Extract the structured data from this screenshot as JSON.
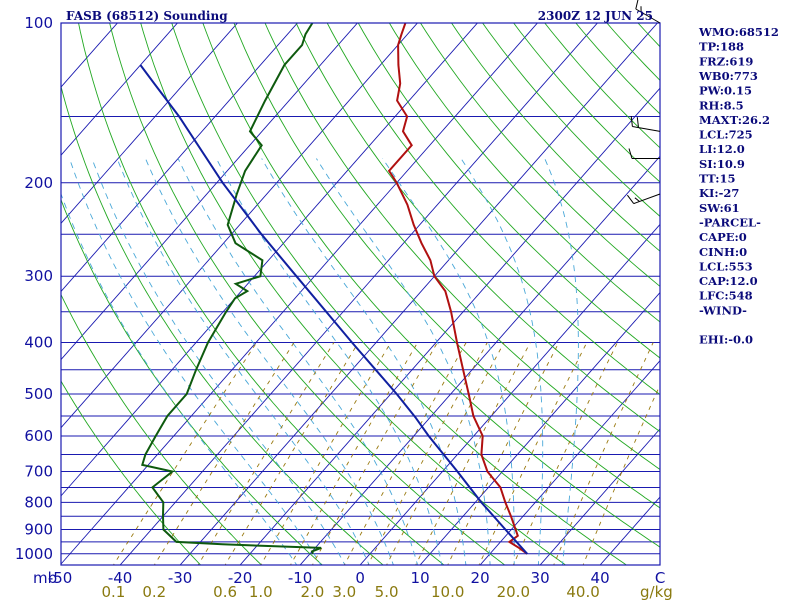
{
  "header": {
    "left": "FASB (68512) Sounding",
    "right": "2300Z 12 JUN 25"
  },
  "indices": [
    "WMO:68512",
    "TP:188",
    "FRZ:619",
    "WB0:773",
    "PW:0.15",
    "RH:8.5",
    "MAXT:26.2",
    "LCL:725",
    "LI:12.0",
    "SI:10.9",
    "TT:15",
    "KI:-27",
    "SW:61",
    "-PARCEL-",
    "CAPE:0",
    "CINH:0",
    "LCL:553",
    "CAP:12.0",
    "LFC:548",
    "-WIND-",
    "",
    "EHI:-0.0"
  ],
  "colors": {
    "frame": "#1a1ab0",
    "isobar": "#1a1ab0",
    "isotherm": "#1a1ab0",
    "dry_adiabat": "#22a822",
    "moist_adiabat": "#4aa8d8",
    "mixing_ratio": "#9a7a10",
    "temperature": "#b01010",
    "dewpoint": "#0e5a0e",
    "parcel": "#1020a0",
    "wind_barb": "#000000"
  },
  "chart_data": {
    "type": "line",
    "diagram": "skew-T log-p",
    "title": "FASB (68512) Sounding",
    "subtitle": "2300Z 12 JUN 25",
    "y_unit": "mb",
    "y_scale": "log",
    "yticks": [
      100,
      200,
      300,
      400,
      500,
      600,
      700,
      800,
      900,
      1000
    ],
    "x_unit": "°C",
    "xticks": [
      -50,
      -40,
      -30,
      -20,
      -10,
      0,
      10,
      20,
      30,
      40,
      50
    ],
    "x_ticklabels": [
      "-50",
      "-40",
      "-30",
      "-20",
      "-10",
      "0",
      "10",
      "20",
      "30",
      "40",
      "C"
    ],
    "mixing_ratio_unit": "g/kg",
    "mixing_ratio_labels": [
      "0.1",
      "0.2",
      "0.6",
      "1.0",
      "2.0",
      "3.0",
      "5.0",
      "10.0",
      "20.0",
      "40.0"
    ],
    "ylim": [
      1050,
      100
    ],
    "series": [
      {
        "role": "temperature",
        "points": [
          [
            1000,
            26.2
          ],
          [
            975,
            24
          ],
          [
            950,
            21.5
          ],
          [
            925,
            22
          ],
          [
            900,
            20.7
          ],
          [
            850,
            18
          ],
          [
            800,
            15
          ],
          [
            750,
            12
          ],
          [
            700,
            7.5
          ],
          [
            650,
            4
          ],
          [
            600,
            1.5
          ],
          [
            550,
            -3
          ],
          [
            500,
            -7
          ],
          [
            450,
            -11.5
          ],
          [
            400,
            -16.5
          ],
          [
            350,
            -22
          ],
          [
            320,
            -26
          ],
          [
            300,
            -30
          ],
          [
            280,
            -33
          ],
          [
            260,
            -37
          ],
          [
            240,
            -41
          ],
          [
            220,
            -45
          ],
          [
            200,
            -50
          ],
          [
            190,
            -53
          ],
          [
            170,
            -53
          ],
          [
            160,
            -56.5
          ],
          [
            150,
            -58
          ],
          [
            140,
            -62
          ],
          [
            130,
            -64
          ],
          [
            120,
            -67
          ],
          [
            110,
            -70
          ],
          [
            105,
            -71
          ],
          [
            100,
            -72
          ]
        ]
      },
      {
        "role": "dewpoint",
        "points": [
          [
            1000,
            -9.5
          ],
          [
            990,
            -10
          ],
          [
            975,
            -9
          ],
          [
            960,
            -26
          ],
          [
            950,
            -34
          ],
          [
            900,
            -38
          ],
          [
            850,
            -40
          ],
          [
            800,
            -42
          ],
          [
            750,
            -46
          ],
          [
            700,
            -45
          ],
          [
            680,
            -51
          ],
          [
            650,
            -52
          ],
          [
            600,
            -53
          ],
          [
            550,
            -54
          ],
          [
            500,
            -54
          ],
          [
            450,
            -56
          ],
          [
            400,
            -58
          ],
          [
            350,
            -59.5
          ],
          [
            330,
            -60
          ],
          [
            320,
            -59
          ],
          [
            310,
            -62
          ],
          [
            300,
            -59
          ],
          [
            280,
            -61
          ],
          [
            260,
            -68
          ],
          [
            240,
            -72
          ],
          [
            210,
            -75
          ],
          [
            190,
            -77
          ],
          [
            170,
            -78
          ],
          [
            160,
            -82
          ],
          [
            140,
            -84
          ],
          [
            120,
            -86
          ],
          [
            110,
            -86
          ],
          [
            105,
            -87
          ],
          [
            100,
            -87.5
          ]
        ]
      },
      {
        "role": "parcel",
        "points": [
          [
            1000,
            26.2
          ],
          [
            900,
            19
          ],
          [
            800,
            11
          ],
          [
            700,
            2.5
          ],
          [
            600,
            -7.5
          ],
          [
            553,
            -12.5
          ],
          [
            500,
            -19
          ],
          [
            400,
            -34
          ],
          [
            300,
            -53
          ],
          [
            250,
            -65
          ],
          [
            200,
            -79
          ],
          [
            150,
            -96
          ],
          [
            130,
            -105
          ],
          [
            120,
            -110
          ]
        ]
      }
    ],
    "wind_barbs": [
      {
        "pressure": 100,
        "direction_deg": 300,
        "speed_kt": 15
      },
      {
        "pressure": 160,
        "direction_deg": 280,
        "speed_kt": 20
      },
      {
        "pressure": 180,
        "direction_deg": 270,
        "speed_kt": 10
      },
      {
        "pressure": 210,
        "direction_deg": 250,
        "speed_kt": 15
      }
    ]
  }
}
